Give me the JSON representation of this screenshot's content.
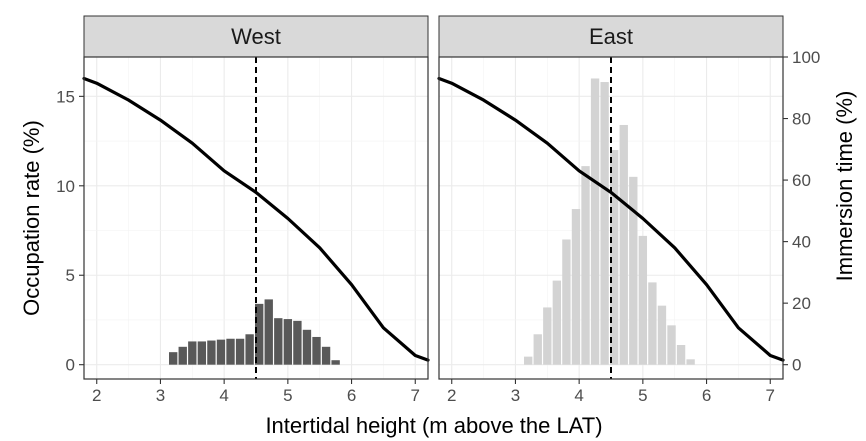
{
  "chart_data": {
    "type": "bar",
    "xlabel": "Intertidal height (m above the LAT)",
    "ylabel": "Occupation rate (%)",
    "y2label": "Immersion time (%)",
    "xlim": [
      1.8,
      7.2
    ],
    "ylim": [
      -0.8,
      17.2
    ],
    "y2lim": [
      -4.65,
      100
    ],
    "x_ticks": [
      2,
      3,
      4,
      5,
      6,
      7
    ],
    "y_ticks": [
      0,
      5,
      10,
      15
    ],
    "y2_ticks": [
      0,
      20,
      40,
      60,
      80,
      100
    ],
    "grid": true,
    "legend": "none",
    "reference_line_x": 4.5,
    "bin_width": 0.15,
    "colors": {
      "West": "#595959",
      "East": "#d3d3d3",
      "curve": "#000000",
      "strip": "#d9d9d9"
    },
    "panels": [
      {
        "name": "West",
        "bar_color": "#595959",
        "bins": [
          {
            "x": 3.2,
            "y": 0.7
          },
          {
            "x": 3.35,
            "y": 1.0
          },
          {
            "x": 3.5,
            "y": 1.3
          },
          {
            "x": 3.65,
            "y": 1.3
          },
          {
            "x": 3.8,
            "y": 1.35
          },
          {
            "x": 3.95,
            "y": 1.4
          },
          {
            "x": 4.1,
            "y": 1.45
          },
          {
            "x": 4.25,
            "y": 1.45
          },
          {
            "x": 4.4,
            "y": 1.7
          },
          {
            "x": 4.55,
            "y": 3.4
          },
          {
            "x": 4.7,
            "y": 3.65
          },
          {
            "x": 4.85,
            "y": 2.6
          },
          {
            "x": 5.0,
            "y": 2.55
          },
          {
            "x": 5.15,
            "y": 2.45
          },
          {
            "x": 5.3,
            "y": 1.95
          },
          {
            "x": 5.45,
            "y": 1.55
          },
          {
            "x": 5.6,
            "y": 1.0
          },
          {
            "x": 5.75,
            "y": 0.25
          }
        ],
        "curve": [
          {
            "x": 1.8,
            "y": 93
          },
          {
            "x": 2.0,
            "y": 91.5
          },
          {
            "x": 2.5,
            "y": 86
          },
          {
            "x": 3.0,
            "y": 79.5
          },
          {
            "x": 3.5,
            "y": 72
          },
          {
            "x": 4.0,
            "y": 63
          },
          {
            "x": 4.5,
            "y": 56
          },
          {
            "x": 5.0,
            "y": 47.5
          },
          {
            "x": 5.5,
            "y": 38
          },
          {
            "x": 6.0,
            "y": 26
          },
          {
            "x": 6.5,
            "y": 12
          },
          {
            "x": 7.0,
            "y": 3
          },
          {
            "x": 7.2,
            "y": 1.5
          }
        ]
      },
      {
        "name": "East",
        "bar_color": "#d3d3d3",
        "bins": [
          {
            "x": 3.2,
            "y": 0.45
          },
          {
            "x": 3.35,
            "y": 1.7
          },
          {
            "x": 3.5,
            "y": 3.2
          },
          {
            "x": 3.65,
            "y": 4.7
          },
          {
            "x": 3.8,
            "y": 7.0
          },
          {
            "x": 3.95,
            "y": 8.7
          },
          {
            "x": 4.1,
            "y": 11.1
          },
          {
            "x": 4.25,
            "y": 16.0
          },
          {
            "x": 4.4,
            "y": 15.8
          },
          {
            "x": 4.55,
            "y": 12.0
          },
          {
            "x": 4.7,
            "y": 13.4
          },
          {
            "x": 4.85,
            "y": 10.5
          },
          {
            "x": 5.0,
            "y": 7.2
          },
          {
            "x": 5.15,
            "y": 4.6
          },
          {
            "x": 5.3,
            "y": 3.3
          },
          {
            "x": 5.45,
            "y": 2.2
          },
          {
            "x": 5.6,
            "y": 1.1
          },
          {
            "x": 5.75,
            "y": 0.3
          }
        ],
        "curve": [
          {
            "x": 1.8,
            "y": 93
          },
          {
            "x": 2.0,
            "y": 91.5
          },
          {
            "x": 2.5,
            "y": 86
          },
          {
            "x": 3.0,
            "y": 79.5
          },
          {
            "x": 3.5,
            "y": 72
          },
          {
            "x": 4.0,
            "y": 63
          },
          {
            "x": 4.5,
            "y": 56
          },
          {
            "x": 5.0,
            "y": 47.5
          },
          {
            "x": 5.5,
            "y": 38
          },
          {
            "x": 6.0,
            "y": 26
          },
          {
            "x": 6.5,
            "y": 12
          },
          {
            "x": 7.0,
            "y": 3
          },
          {
            "x": 7.2,
            "y": 1.5
          }
        ]
      }
    ]
  }
}
